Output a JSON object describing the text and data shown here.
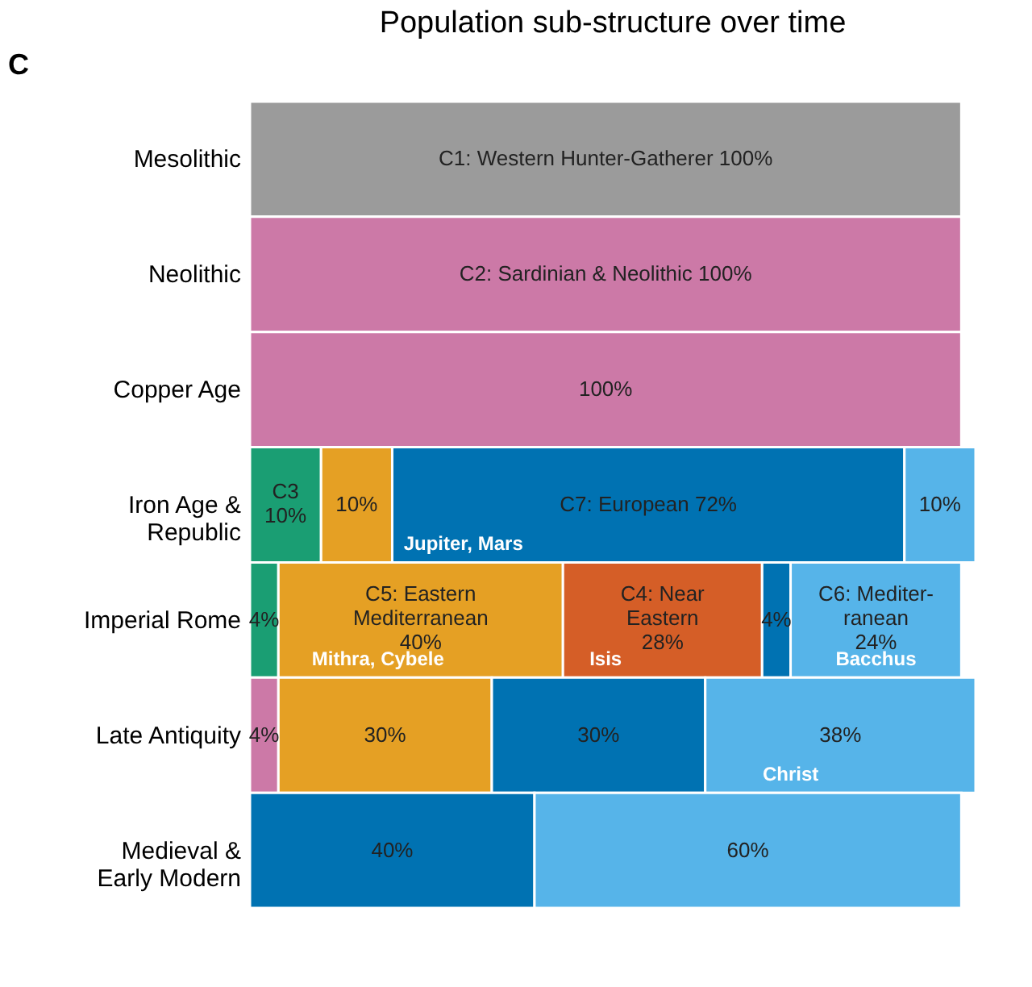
{
  "chart_data": {
    "type": "bar",
    "orientation": "horizontal",
    "stacked": true,
    "title": "Population sub-structure over time",
    "categories": [
      "Mesolithic",
      "Neolithic",
      "Copper Age",
      "Iron Age & Republic",
      "Imperial Rome",
      "Late Antiquity",
      "Medieval & Early Modern"
    ],
    "series": [
      {
        "color": "#9b9b9b",
        "values": [
          100,
          null,
          null,
          null,
          null,
          null,
          null
        ],
        "value_labels": [
          "C1: Western Hunter-Gatherer 100%",
          null,
          null,
          null,
          null,
          null,
          null
        ]
      },
      {
        "color": "#cc79a7",
        "values": [
          null,
          100,
          100,
          null,
          null,
          4,
          null
        ],
        "value_labels": [
          null,
          "C2: Sardinian & Neolithic 100%",
          "100%",
          null,
          null,
          "4%",
          null
        ]
      },
      {
        "color": "#1a9e73",
        "values": [
          null,
          null,
          null,
          10,
          4,
          null,
          null
        ],
        "value_labels": [
          null,
          null,
          null,
          "C3\n10%",
          "4%",
          null,
          null
        ]
      },
      {
        "color": "#e5a024",
        "values": [
          null,
          null,
          null,
          10,
          40,
          30,
          null
        ],
        "value_labels": [
          null,
          null,
          null,
          "10%",
          "C5: Eastern\nMediterranean\n40%",
          "30%",
          null
        ]
      },
      {
        "color": "#d55e27",
        "values": [
          null,
          null,
          null,
          null,
          28,
          null,
          null
        ],
        "value_labels": [
          null,
          null,
          null,
          null,
          "C4: Near\nEastern\n28%",
          null,
          null
        ]
      },
      {
        "color": "#0072b2",
        "values": [
          null,
          null,
          null,
          72,
          4,
          30,
          40
        ],
        "value_labels": [
          null,
          null,
          null,
          "C7: European  72%",
          "4%",
          "30%",
          "40%"
        ]
      },
      {
        "color": "#56b4e9",
        "values": [
          null,
          null,
          null,
          10,
          24,
          38,
          60
        ],
        "value_labels": [
          null,
          null,
          null,
          "10%",
          "C6: Mediter-\nranean\n24%",
          "38%",
          "60%"
        ]
      }
    ],
    "annotations": [
      "C",
      {
        "text": "Jupiter, Mars",
        "x": 30,
        "y": "Iron Age & Republic"
      },
      {
        "text": "Mithra, Cybele",
        "x": 18,
        "y": "Imperial Rome"
      },
      {
        "text": "Isis",
        "x": 50,
        "y": "Imperial Rome"
      },
      {
        "text": "Bacchus",
        "x": 88,
        "y": "Imperial Rome"
      },
      {
        "text": "Christ",
        "x": 76,
        "y": "Late Antiquity"
      }
    ],
    "xlim": [
      0,
      102
    ],
    "tick_labels": "y"
  }
}
